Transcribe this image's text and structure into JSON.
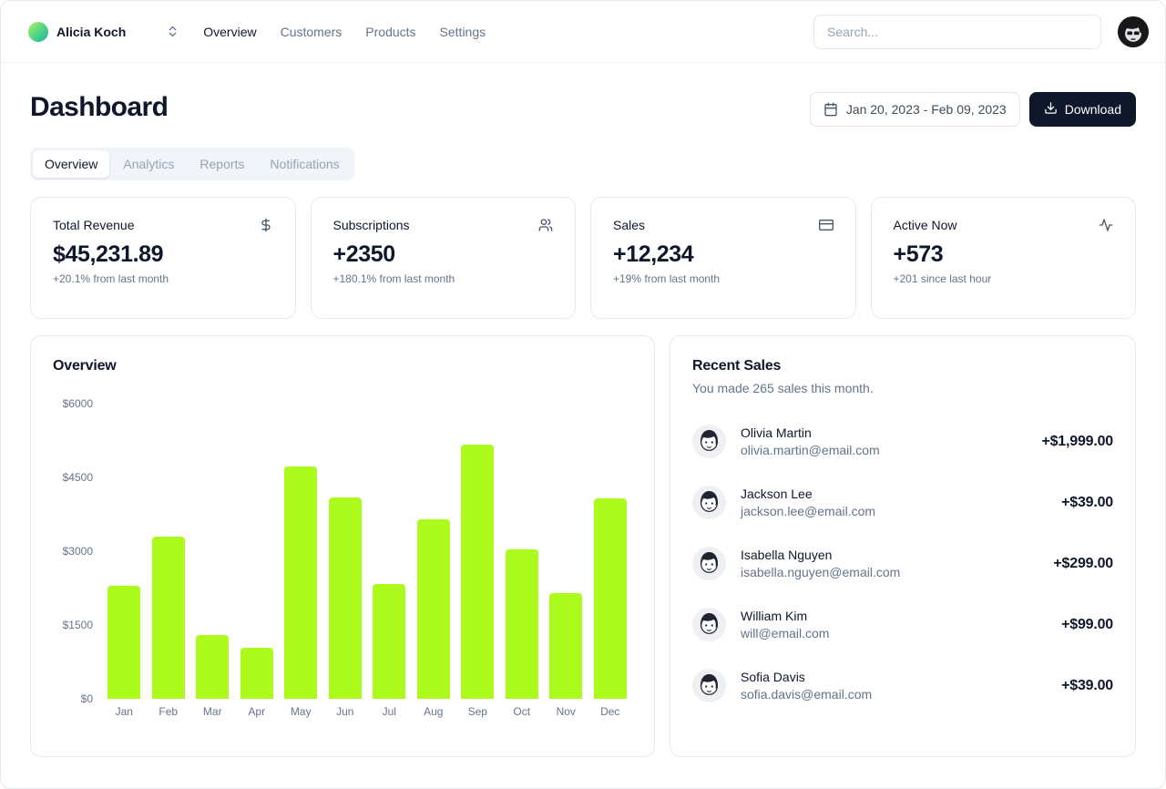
{
  "header": {
    "team_name": "Alicia Koch",
    "nav": [
      {
        "label": "Overview",
        "active": true
      },
      {
        "label": "Customers",
        "active": false
      },
      {
        "label": "Products",
        "active": false
      },
      {
        "label": "Settings",
        "active": false
      }
    ],
    "search_placeholder": "Search..."
  },
  "page": {
    "title": "Dashboard",
    "date_range": "Jan 20, 2023 - Feb 09, 2023",
    "download_label": "Download",
    "tabs": [
      {
        "label": "Overview",
        "active": true
      },
      {
        "label": "Analytics",
        "active": false
      },
      {
        "label": "Reports",
        "active": false
      },
      {
        "label": "Notifications",
        "active": false
      }
    ]
  },
  "stats": [
    {
      "title": "Total Revenue",
      "icon": "dollar-icon",
      "value": "$45,231.89",
      "change": "+20.1% from last month"
    },
    {
      "title": "Subscriptions",
      "icon": "users-icon",
      "value": "+2350",
      "change": "+180.1% from last month"
    },
    {
      "title": "Sales",
      "icon": "credit-card-icon",
      "value": "+12,234",
      "change": "+19% from last month"
    },
    {
      "title": "Active Now",
      "icon": "activity-icon",
      "value": "+573",
      "change": "+201 since last hour"
    }
  ],
  "chart_data": {
    "type": "bar",
    "title": "Overview",
    "categories": [
      "Jan",
      "Feb",
      "Mar",
      "Apr",
      "May",
      "Jun",
      "Jul",
      "Aug",
      "Sep",
      "Oct",
      "Nov",
      "Dec"
    ],
    "values": [
      2300,
      3300,
      1290,
      1030,
      4730,
      4100,
      2330,
      3650,
      5160,
      3040,
      2140,
      4080
    ],
    "xlabel": "",
    "ylabel": "",
    "ylim": [
      0,
      6000
    ],
    "y_ticks": [
      "$6000",
      "$4500",
      "$3000",
      "$1500",
      "$0"
    ],
    "grid": false,
    "legend": false,
    "bar_color": "#adfa1d"
  },
  "recent_sales": {
    "title": "Recent Sales",
    "subtitle": "You made 265 sales this month.",
    "items": [
      {
        "name": "Olivia Martin",
        "email": "olivia.martin@email.com",
        "amount": "+$1,999.00"
      },
      {
        "name": "Jackson Lee",
        "email": "jackson.lee@email.com",
        "amount": "+$39.00"
      },
      {
        "name": "Isabella Nguyen",
        "email": "isabella.nguyen@email.com",
        "amount": "+$299.00"
      },
      {
        "name": "William Kim",
        "email": "will@email.com",
        "amount": "+$99.00"
      },
      {
        "name": "Sofia Davis",
        "email": "sofia.davis@email.com",
        "amount": "+$39.00"
      }
    ]
  }
}
